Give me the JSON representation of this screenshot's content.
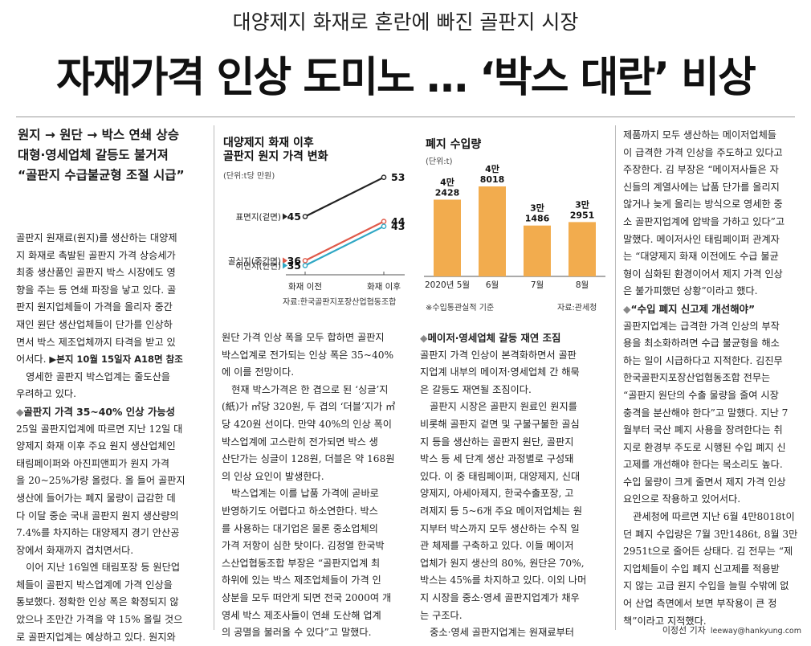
{
  "kicker": "대양제지 화재로 혼란에 빠진 골판지 시장",
  "headline": "자재가격 인상 도미노 … ‘박스 대란’ 비상",
  "subheads": [
    "원지 → 원단 → 박스 연쇄 상승",
    "대형·영세업체 갈등도 불거져",
    "“골판지 수급불균형 조절 시급”"
  ],
  "charts": {
    "left": {
      "title_1": "대양제지 화재 이후",
      "title_2": "골판지 원지 가격 변화",
      "unit": "(단위:t당 만원)",
      "source": "자료:한국골판지포장산업협동조합",
      "series_labels": [
        "표면지(겉면)",
        "골심지(중간면)",
        "이면지(안면)"
      ],
      "start_labels": [
        "45",
        "36",
        "35"
      ],
      "end_labels": [
        "53",
        "44",
        "43"
      ],
      "x_labels": [
        "화재 이전",
        "화재 이후"
      ]
    },
    "right": {
      "title": "폐지 수입량",
      "unit": "(단위:t)",
      "source": "자료:관세청",
      "note": "※수입통관실적 기준",
      "bar_labels_top": [
        "4만",
        "4만",
        "3만",
        "3만"
      ],
      "bar_labels_bottom": [
        "2428",
        "8018",
        "1486",
        "2951"
      ],
      "x_labels": [
        "2020년 5월",
        "6월",
        "7월",
        "8월"
      ]
    }
  },
  "chart_data": [
    {
      "type": "line",
      "title": "대양제지 화재 이후 골판지 원지 가격 변화",
      "ylabel": "(단위:t당 만원)",
      "categories": [
        "화재 이전",
        "화재 이후"
      ],
      "series": [
        {
          "name": "표면지(겉면)",
          "values": [
            45,
            53
          ],
          "color": "#222222"
        },
        {
          "name": "골심지(중간면)",
          "values": [
            36,
            44
          ],
          "color": "#e05a4a"
        },
        {
          "name": "이면지(안면)",
          "values": [
            35,
            43
          ],
          "color": "#2fa7c4"
        }
      ]
    },
    {
      "type": "bar",
      "title": "폐지 수입량",
      "ylabel": "(단위:t)",
      "categories": [
        "2020년 5월",
        "6월",
        "7월",
        "8월"
      ],
      "values": [
        42428,
        48018,
        31486,
        32951
      ],
      "color": "#f2ac4e"
    }
  ],
  "col1": {
    "lines": [
      "골판지 원재료(원지)를 생산하는 대양제",
      "지 화재로 촉발된 골판지 가격 상승세가",
      "최종 생산품인 골판지 박스 시장에도 영",
      "향을 주는 등 연쇄 파장을 낳고 있다. 골",
      "판지 원지업체들이 가격을 올리자 중간",
      "재인 원단 생산업체들이 단가를 인상하",
      "면서 박스 제조업체까지 타격을 받고 있"
    ],
    "line8_text": "어서다. ",
    "ref": "▶본지 10월 15일자 A18면 참조",
    "lines_b": [
      "　영세한 골판지 박스업계는 줄도산을",
      "우려하고 있다."
    ],
    "section": "골판지 가격 35~40% 인상 가능성",
    "lines_c": [
      "25일 골판지업계에 따르면 지난 12일 대",
      "양제지 화재 이후 주요 원지 생산업체인",
      "태림페이퍼와 아진피앤피가 원지 가격",
      "을 20~25%가량 올렸다. 올 들어 골판지",
      "생산에 들어가는 폐지 물량이 급감한 데",
      "다 이달 중순 국내 골판지 원지 생산량의",
      "7.4%를 차지하는 대양제지 경기 안산공",
      "장에서 화재까지 겹치면서다.",
      "　이어 지난 16일엔 태림포장 등 원단업",
      "체들이 골판지 박스업계에 가격 인상을",
      "통보했다. 정확한 인상 폭은 확정되지 않",
      "았으나 조만간 가격을 약 15% 올릴 것으",
      "로 골판지업계는 예상하고 있다. 원지와"
    ]
  },
  "col2": {
    "lines": [
      "원단 가격 인상 폭을 모두 합하면 골판지",
      "박스업계로 전가되는 인상 폭은 35~40%",
      "에 이를 전망이다.",
      "　현재 박스가격은 한 겹으로 된 ‘싱글’지",
      "(紙)가 ㎡당 320원, 두 겹의 ‘더블’지가 ㎡",
      "당 420원 선이다. 만약 40%의 인상 폭이",
      "박스업계에 고스란히 전가되면 박스 생",
      "산단가는 싱글이 128원, 더블은 약 168원",
      "의 인상 요인이 발생한다.",
      "　박스업계는 이를 납품 가격에 곧바로",
      "반영하기도 어렵다고 하소연한다. 박스",
      "를 사용하는 대기업은 물론 중소업체의",
      "가격 저항이 심한 탓이다. 김정열 한국박",
      "스산업협동조합 부장은 “골판지업계 최",
      "하위에 있는 박스 제조업체들이 가격 인",
      "상분을 모두 떠안게 되면 전국 2000여 개",
      "영세 박스 제조사들이 연쇄 도산해 업계",
      "의 공멸을 불러올 수 있다”고 말했다."
    ]
  },
  "col3": {
    "section": "메이저·영세업체 갈등 재연 조짐",
    "lines": [
      "골판지 가격 인상이 본격화하면서 골판",
      "지업계 내부의 메이저·영세업체 간 해묵",
      "은 갈등도 재연될 조짐이다.",
      "　골판지 시장은 골판지 원료인 원지를",
      "비롯해 골판지 겉면 및 구불구불한 골심",
      "지 등을 생산하는 골판지 원단, 골판지",
      "박스 등 세 단계 생산 과정별로 구성돼",
      "있다. 이 중 태림페이퍼, 대양제지, 신대",
      "양제지, 아세아제지, 한국수출포장, 고",
      "려제지 등 5~6개 주요 메이저업체는 원",
      "지부터 박스까지 모두 생산하는 수직 일",
      "관 체제를 구축하고 있다. 이들 메이저",
      "업체가 원지 생산의 80%, 원단은 70%,",
      "박스는 45%를 차지하고 있다. 이외 나머",
      "지 시장을 중소·영세 골판지업계가 채우",
      "는 구조다.",
      "　중소·영세 골판지업계는 원재료부터"
    ]
  },
  "col4": {
    "lines": [
      "제품까지 모두 생산하는 메이저업체들",
      "이 급격한 가격 인상을 주도하고 있다고",
      "주장한다. 김 부장은 “메이저사들은 자",
      "신들의 계열사에는 납품 단가를 올리지",
      "않거나 늦게 올리는 방식으로 영세한 중",
      "소 골판지업계에 압박을 가하고 있다”고",
      "말했다. 메이저사인 태림페이퍼 관계자",
      "는 “대양제지 화재 이전에도 수급 불균",
      "형이 심화된 환경이어서 제지 가격 인상",
      "은 불가피했던 상황”이라고 했다."
    ],
    "section": "“수입 폐지 신고제 개선해야”",
    "lines_b": [
      "골판지업계는 급격한 가격 인상의 부작",
      "용을 최소화하려면 수급 불균형을 해소",
      "하는 일이 시급하다고 지적한다. 김진무",
      "한국골판지포장산업협동조합 전무는",
      "“골판지 원단의 수출 물량을 줄여 시장",
      "충격을 분산해야 한다”고 말했다. 지난 7",
      "월부터 국산 폐지 사용을 장려한다는 취",
      "지로 환경부 주도로 시행된 수입 폐지 신",
      "고제를 개선해야 한다는 목소리도 높다.",
      "수입 물량이 크게 줄면서 제지 가격 인상",
      "요인으로 작용하고 있어서다.",
      "　관세청에 따르면 지난 6월 4만8018t이",
      "던 폐지 수입량은 7월 3만1486t, 8월 3만",
      "2951t으로 줄어든 상태다. 김 전무는 “제",
      "지업체들이 수입 폐지 신고제를 적용받",
      "지 않는 고급 원지 수입을 늘릴 수밖에 없",
      "어 산업 측면에서 보면 부작용이 큰 정",
      "책”이라고 지적했다."
    ]
  },
  "byline": {
    "name": "이정선 기자",
    "email": "leeway@hankyung.com"
  }
}
